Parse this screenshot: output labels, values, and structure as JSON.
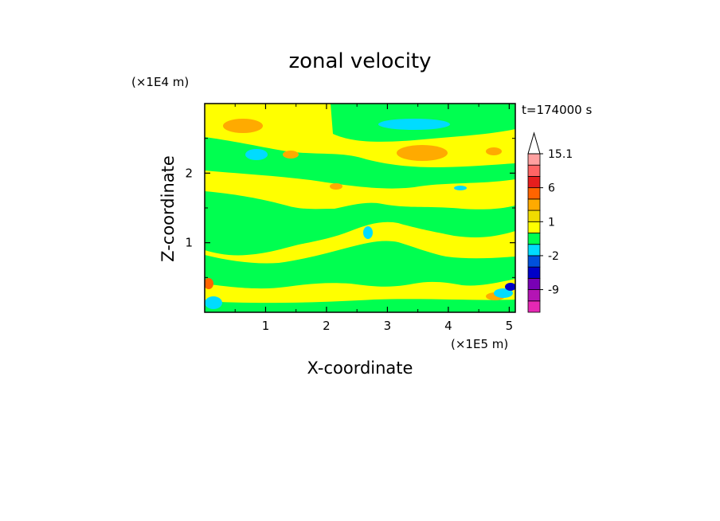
{
  "chart_data": {
    "type": "heatmap",
    "title": "zonal velocity",
    "xlabel": "X-coordinate",
    "ylabel": "Z-coordinate",
    "x_scale_note": "(×1E5 m)",
    "y_scale_note": "(×1E4 m)",
    "time_label": "t=174000 s",
    "xlim": [
      0,
      5.1
    ],
    "ylim": [
      0,
      3.0
    ],
    "x_ticks": [
      "1",
      "2",
      "3",
      "4",
      "5"
    ],
    "y_ticks": [
      "1",
      "2"
    ],
    "colorbar": {
      "levels": [
        -15.1,
        -12,
        -9,
        -6,
        -3,
        -2,
        -1,
        0,
        1,
        2,
        3,
        6,
        9,
        12,
        15.1
      ],
      "colors": [
        "#e628b4",
        "#b414b4",
        "#7800b4",
        "#0000c8",
        "#0050dc",
        "#00dcff",
        "#00ff50",
        "#ffff00",
        "#f0dc00",
        "#ffaa00",
        "#ff6400",
        "#e61e1e",
        "#ff6464",
        "#ffa0a0"
      ],
      "tick_labels": [
        "15.1",
        "6",
        "1",
        "-2",
        "-9"
      ],
      "extends_max": true
    },
    "field_regions": [
      {
        "value_class": "negative small (-1..0)",
        "color": "#00ff50"
      },
      {
        "value_class": "positive small (0..1)",
        "color": "#ffff00"
      },
      {
        "value_class": "positive (1..3)",
        "color": "#ffaa00"
      },
      {
        "value_class": "negative (-2..-1)",
        "color": "#00dcff"
      },
      {
        "value_class": "negative strong",
        "color": "#0000c8"
      },
      {
        "value_class": "positive strong",
        "color": "#ff6400"
      }
    ]
  }
}
